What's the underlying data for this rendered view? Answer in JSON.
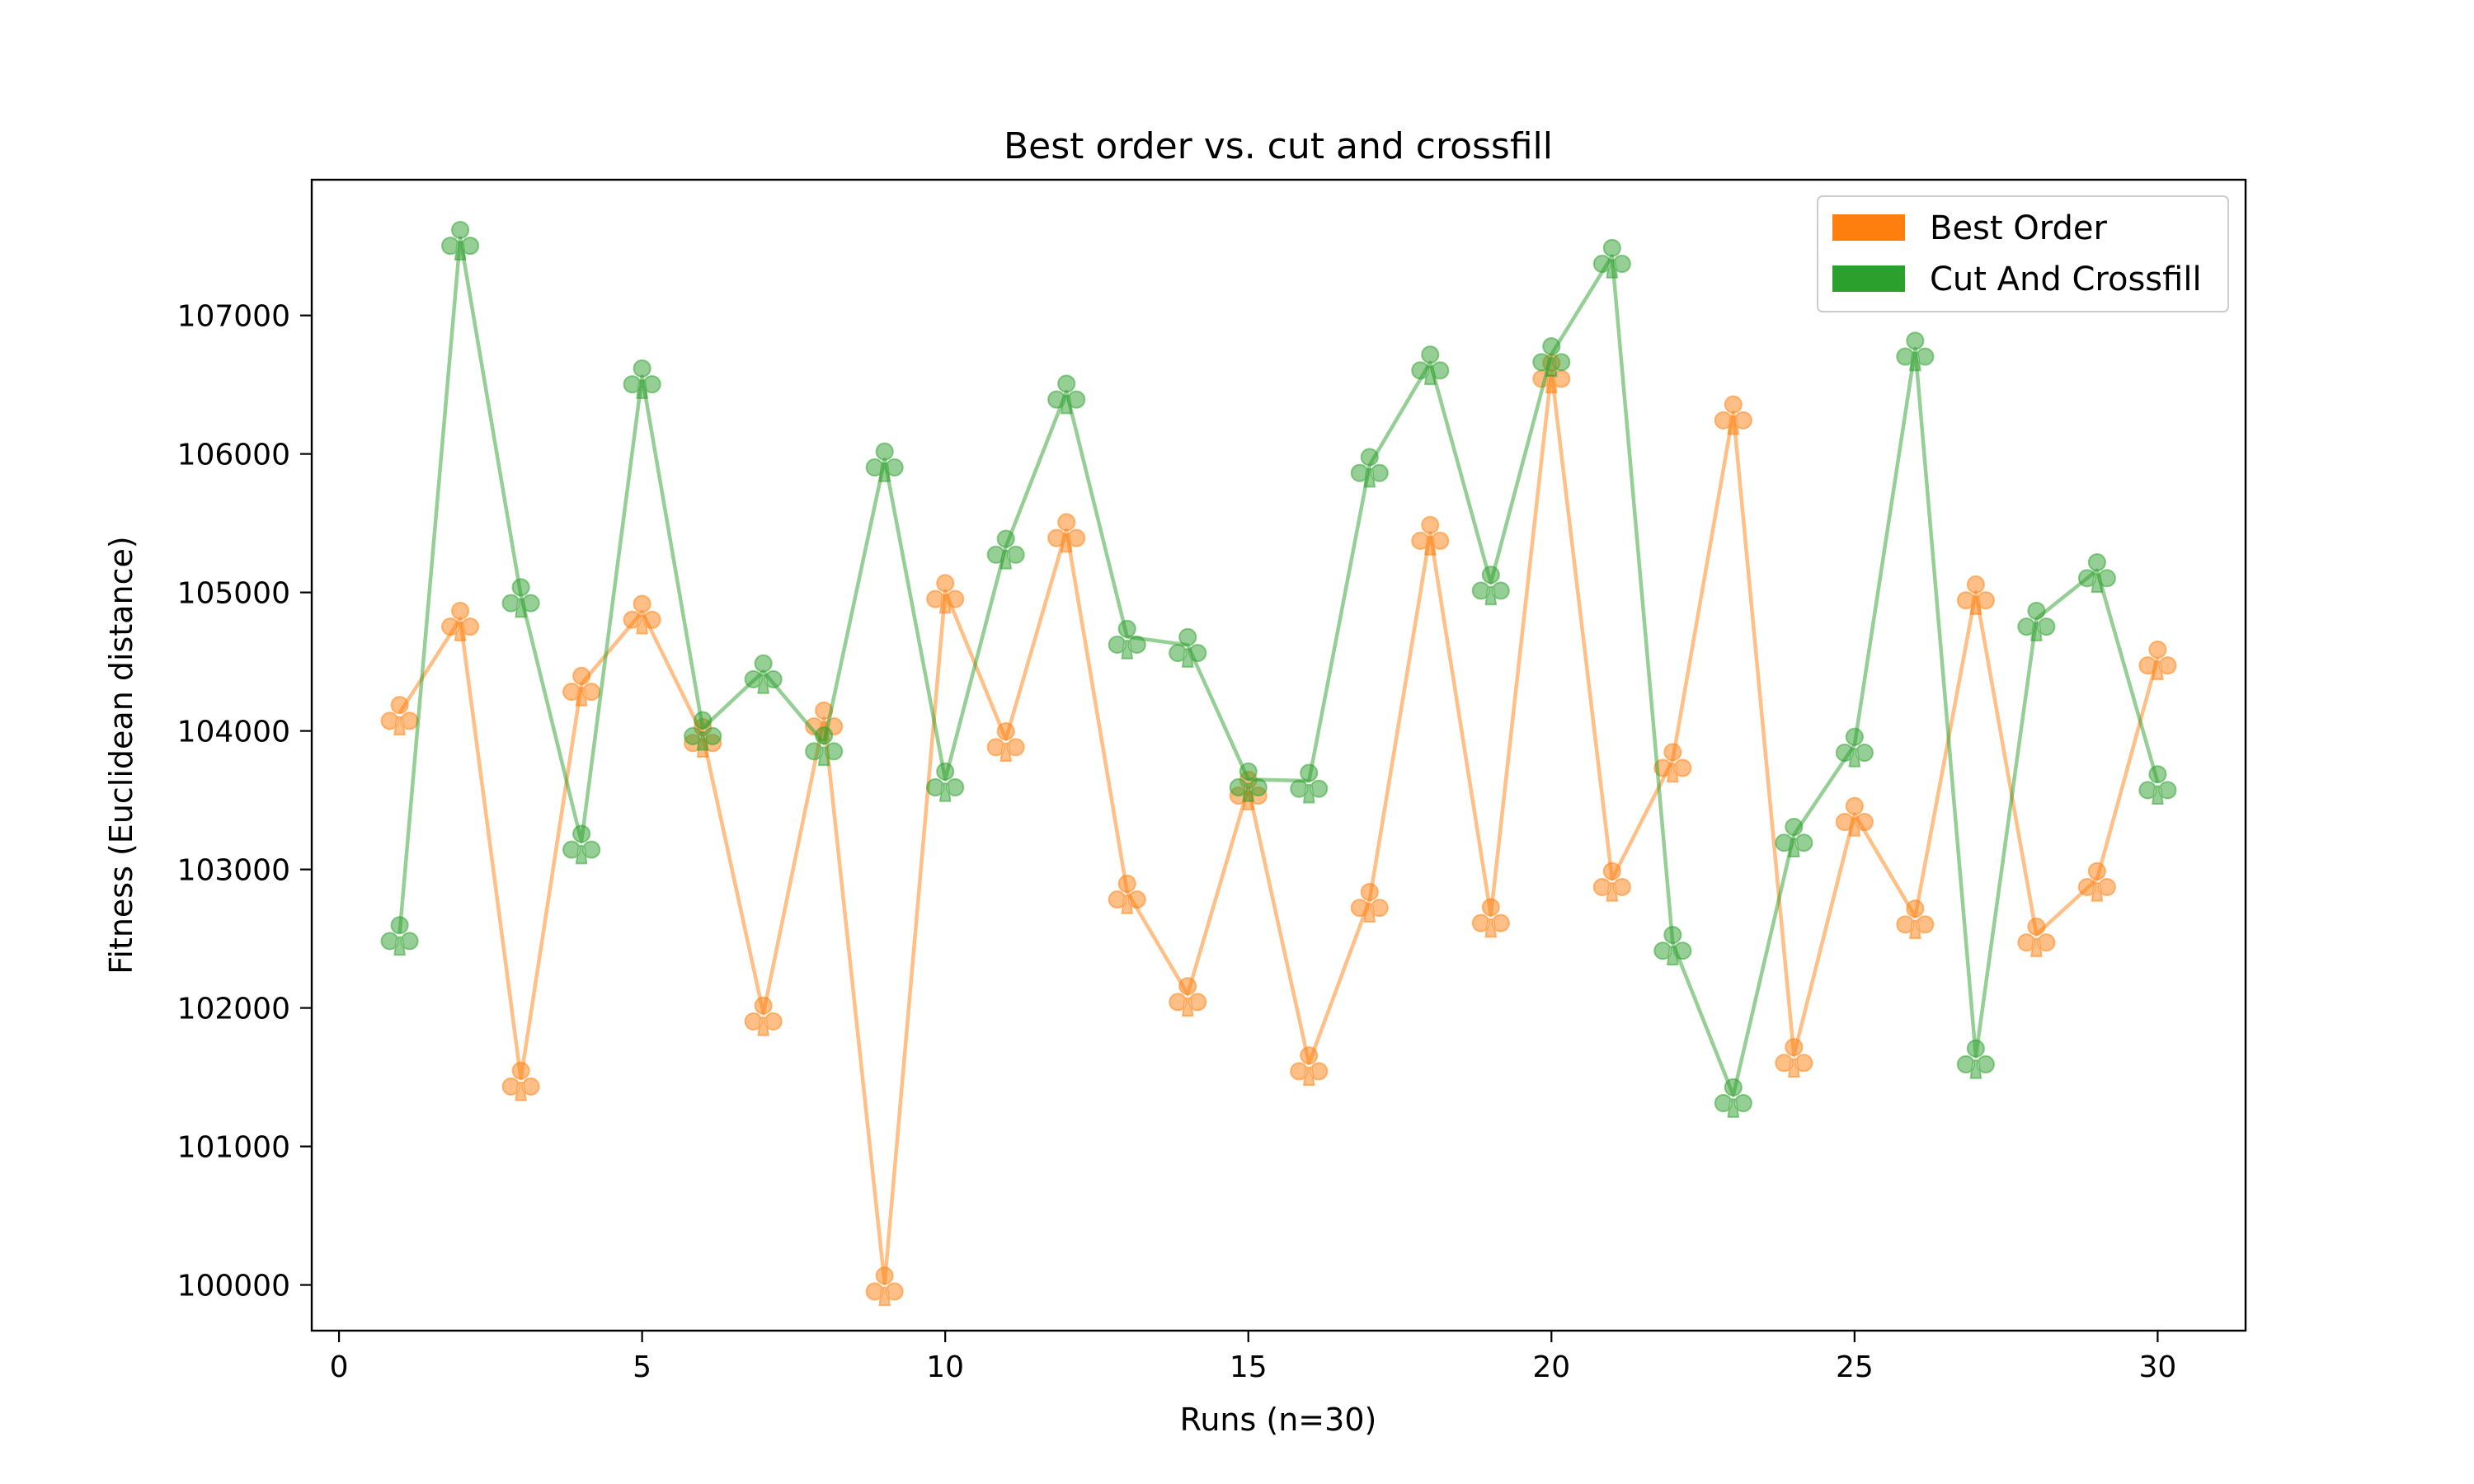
{
  "chart_data": {
    "type": "line",
    "title": "Best order vs. cut and crossfill",
    "xlabel": "Runs (n=30)",
    "ylabel": "Fitness (Euclidean distance)",
    "xlim": [
      -0.45,
      31.45
    ],
    "ylim": [
      99670,
      107980
    ],
    "xticks": [
      0,
      5,
      10,
      15,
      20,
      25,
      30
    ],
    "yticks": [
      100000,
      101000,
      102000,
      103000,
      104000,
      105000,
      106000,
      107000
    ],
    "grid": false,
    "legend": "top-right",
    "marker": "club-suit",
    "x": [
      1,
      2,
      3,
      4,
      5,
      6,
      7,
      8,
      9,
      10,
      11,
      12,
      13,
      14,
      15,
      16,
      17,
      18,
      19,
      20,
      21,
      22,
      23,
      24,
      25,
      26,
      27,
      28,
      29,
      30
    ],
    "series": [
      {
        "name": "Best Order",
        "color": "#ff7f0e",
        "values": [
          104130,
          104810,
          101490,
          104340,
          104860,
          103970,
          101960,
          104090,
          100010,
          105010,
          103940,
          105450,
          102840,
          102100,
          103590,
          101600,
          102780,
          105430,
          102670,
          106600,
          102930,
          103790,
          106300,
          101660,
          103400,
          102660,
          105000,
          102530,
          102930,
          104530
        ]
      },
      {
        "name": "Cut And Crossfill",
        "color": "#2ca02c",
        "values": [
          102540,
          107560,
          104980,
          103200,
          106560,
          104020,
          104430,
          103910,
          105960,
          103650,
          105330,
          106450,
          104680,
          104620,
          103650,
          103640,
          105920,
          106660,
          105070,
          106720,
          107430,
          102470,
          101370,
          103250,
          103900,
          106760,
          101650,
          104810,
          105160,
          103630
        ]
      }
    ]
  }
}
